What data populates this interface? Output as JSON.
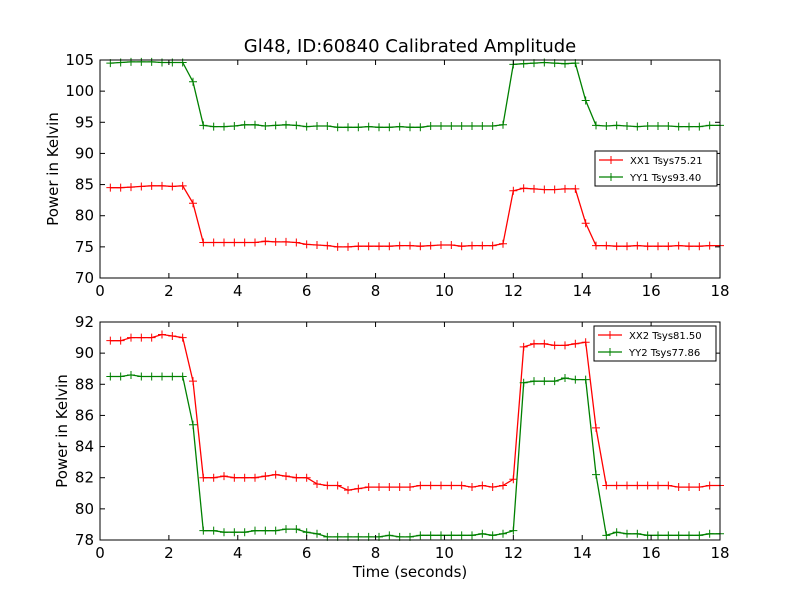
{
  "title": "Gl48, ID:60840 Calibrated Amplitude",
  "colors": {
    "xx": "#ff0000",
    "yy": "#008000",
    "axis": "#000000",
    "background": "#ffffff"
  },
  "chart_data": [
    {
      "type": "line",
      "title": "Gl48, ID:60840 Calibrated Amplitude",
      "xlabel": "",
      "ylabel": "Power in Kelvin",
      "xlim": [
        0,
        18
      ],
      "ylim": [
        70,
        105
      ],
      "xticks": [
        "0",
        "2",
        "4",
        "6",
        "8",
        "10",
        "12",
        "14",
        "16",
        "18"
      ],
      "yticks": [
        "70",
        "75",
        "80",
        "85",
        "90",
        "95",
        "100",
        "105"
      ],
      "legend_position": "center-right",
      "grid": false,
      "x": [
        0.3,
        0.6,
        0.9,
        1.2,
        1.5,
        1.8,
        2.1,
        2.4,
        2.7,
        3.0,
        3.3,
        3.6,
        3.9,
        4.2,
        4.5,
        4.8,
        5.1,
        5.4,
        5.7,
        6.0,
        6.3,
        6.6,
        6.9,
        7.2,
        7.5,
        7.8,
        8.1,
        8.4,
        8.7,
        9.0,
        9.3,
        9.6,
        9.9,
        10.2,
        10.5,
        10.8,
        11.1,
        11.4,
        11.7,
        12.0,
        12.3,
        12.6,
        12.9,
        13.2,
        13.5,
        13.8,
        14.1,
        14.4,
        14.7,
        15.0,
        15.3,
        15.6,
        15.9,
        16.2,
        16.5,
        16.8,
        17.1,
        17.4,
        17.7,
        18.0
      ],
      "series": [
        {
          "name": "XX1 Tsys75.21",
          "color": "#ff0000",
          "values": [
            84.5,
            84.5,
            84.6,
            84.7,
            84.8,
            84.8,
            84.7,
            84.8,
            82.0,
            75.7,
            75.7,
            75.7,
            75.7,
            75.7,
            75.7,
            75.9,
            75.8,
            75.8,
            75.7,
            75.4,
            75.3,
            75.2,
            75.0,
            75.0,
            75.1,
            75.1,
            75.1,
            75.1,
            75.2,
            75.2,
            75.1,
            75.2,
            75.3,
            75.3,
            75.1,
            75.2,
            75.2,
            75.2,
            75.5,
            84.0,
            84.4,
            84.3,
            84.2,
            84.2,
            84.3,
            84.3,
            78.8,
            75.2,
            75.2,
            75.1,
            75.1,
            75.2,
            75.1,
            75.1,
            75.1,
            75.2,
            75.1,
            75.1,
            75.2,
            75.2
          ]
        },
        {
          "name": "YY1 Tsys93.40",
          "color": "#008000",
          "values": [
            104.5,
            104.6,
            104.7,
            104.7,
            104.7,
            104.6,
            104.6,
            104.6,
            101.5,
            94.5,
            94.3,
            94.3,
            94.4,
            94.6,
            94.6,
            94.4,
            94.5,
            94.6,
            94.5,
            94.3,
            94.4,
            94.4,
            94.2,
            94.2,
            94.2,
            94.3,
            94.2,
            94.2,
            94.3,
            94.2,
            94.2,
            94.4,
            94.4,
            94.4,
            94.4,
            94.4,
            94.4,
            94.4,
            94.6,
            104.3,
            104.4,
            104.5,
            104.6,
            104.5,
            104.4,
            104.5,
            98.5,
            94.5,
            94.4,
            94.5,
            94.4,
            94.3,
            94.4,
            94.4,
            94.4,
            94.3,
            94.3,
            94.3,
            94.5,
            94.5
          ]
        }
      ]
    },
    {
      "type": "line",
      "title": "",
      "xlabel": "Time (seconds)",
      "ylabel": "Power in Kelvin",
      "xlim": [
        0,
        18
      ],
      "ylim": [
        78,
        92
      ],
      "xticks": [
        "0",
        "2",
        "4",
        "6",
        "8",
        "10",
        "12",
        "14",
        "16",
        "18"
      ],
      "yticks": [
        "78",
        "80",
        "82",
        "84",
        "86",
        "88",
        "90",
        "92"
      ],
      "legend_position": "top-right",
      "grid": false,
      "x": [
        0.3,
        0.6,
        0.9,
        1.2,
        1.5,
        1.8,
        2.1,
        2.4,
        2.7,
        3.0,
        3.3,
        3.6,
        3.9,
        4.2,
        4.5,
        4.8,
        5.1,
        5.4,
        5.7,
        6.0,
        6.3,
        6.6,
        6.9,
        7.2,
        7.5,
        7.8,
        8.1,
        8.4,
        8.7,
        9.0,
        9.3,
        9.6,
        9.9,
        10.2,
        10.5,
        10.8,
        11.1,
        11.4,
        11.7,
        12.0,
        12.3,
        12.6,
        12.9,
        13.2,
        13.5,
        13.8,
        14.1,
        14.4,
        14.7,
        15.0,
        15.3,
        15.6,
        15.9,
        16.2,
        16.5,
        16.8,
        17.1,
        17.4,
        17.7,
        18.0
      ],
      "series": [
        {
          "name": "XX2 Tsys81.50",
          "color": "#ff0000",
          "values": [
            90.8,
            90.8,
            91.0,
            91.0,
            91.0,
            91.2,
            91.1,
            91.0,
            88.2,
            82.0,
            82.0,
            82.1,
            82.0,
            82.0,
            82.0,
            82.1,
            82.2,
            82.1,
            82.0,
            82.0,
            81.6,
            81.5,
            81.5,
            81.2,
            81.3,
            81.4,
            81.4,
            81.4,
            81.4,
            81.4,
            81.5,
            81.5,
            81.5,
            81.5,
            81.5,
            81.4,
            81.5,
            81.4,
            81.5,
            81.9,
            90.4,
            90.6,
            90.6,
            90.5,
            90.5,
            90.6,
            90.7,
            85.2,
            81.5,
            81.5,
            81.5,
            81.5,
            81.5,
            81.5,
            81.5,
            81.4,
            81.4,
            81.4,
            81.5,
            81.5
          ]
        },
        {
          "name": "YY2 Tsys77.86",
          "color": "#008000",
          "values": [
            88.5,
            88.5,
            88.6,
            88.5,
            88.5,
            88.5,
            88.5,
            88.5,
            85.4,
            78.6,
            78.6,
            78.5,
            78.5,
            78.5,
            78.6,
            78.6,
            78.6,
            78.7,
            78.7,
            78.5,
            78.4,
            78.2,
            78.2,
            78.2,
            78.2,
            78.2,
            78.2,
            78.3,
            78.2,
            78.2,
            78.3,
            78.3,
            78.3,
            78.3,
            78.3,
            78.3,
            78.4,
            78.3,
            78.4,
            78.6,
            88.1,
            88.2,
            88.2,
            88.2,
            88.4,
            88.3,
            88.3,
            82.2,
            78.3,
            78.5,
            78.4,
            78.4,
            78.3,
            78.3,
            78.3,
            78.3,
            78.3,
            78.3,
            78.4,
            78.4
          ]
        }
      ]
    }
  ]
}
